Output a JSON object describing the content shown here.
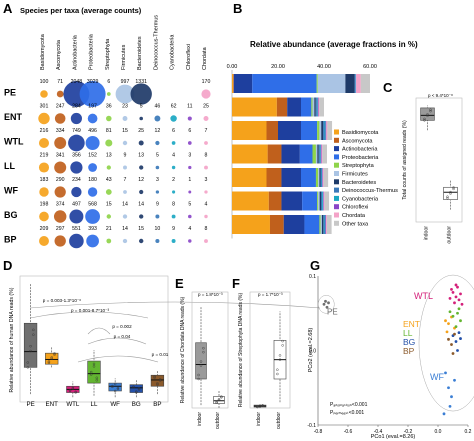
{
  "colors": {
    "Basidiomycota": "#f5a21b",
    "Ascomycota": "#c0601c",
    "Actinobacteria": "#1e3f9e",
    "Proteobacteria": "#2f6ee8",
    "Streptophyta": "#8fd44a",
    "Firmicutes": "#aac4e4",
    "Bacteroidetes": "#1e3a68",
    "Deinococcus-Thermus": "#3a78b8",
    "Cyanobacteria": "#1aa7c2",
    "Chloroflexi": "#8a46c8",
    "Chordata": "#f4a3c8",
    "Other taxa": "#c8c8c8",
    "PE": "#6f6f6f",
    "ENT": "#f5a21b",
    "WTL": "#d4207a",
    "LL": "#63b531",
    "WF": "#3a7ed4",
    "BG": "#2450a8",
    "BP": "#8b5a2b"
  },
  "chart_data": [
    {
      "panel": "A",
      "type": "heatmap",
      "title": "Species per taxa (average counts)",
      "categories": [
        "Basidiomycota",
        "Ascomycota",
        "Actinobacteria",
        "Proteobacteria",
        "Streptophyta",
        "Firmicutes",
        "Bacteroidetes",
        "Deinococcus-Thermus",
        "Cyanobacteria",
        "Chloroflexi",
        "Chordata"
      ],
      "rows": [
        "PE",
        "ENT",
        "WTL",
        "LL",
        "WF",
        "BG",
        "BP"
      ],
      "values": [
        [
          "100",
          "71",
          "2048",
          "3029",
          "6",
          "997",
          "1331",
          "",
          "",
          "",
          "170"
        ],
        [
          "301",
          "247",
          "284",
          "197",
          "36",
          "23",
          "5",
          "46",
          "62",
          "11",
          "25"
        ],
        [
          "216",
          "334",
          "749",
          "496",
          "81",
          "15",
          "25",
          "12",
          "6",
          "6",
          "7"
        ],
        [
          "219",
          "341",
          "356",
          "152",
          "13",
          "9",
          "13",
          "5",
          "4",
          "3",
          "8"
        ],
        [
          "183",
          "290",
          "234",
          "180",
          "43",
          "7",
          "12",
          "3",
          "2",
          "1",
          "3"
        ],
        [
          "198",
          "374",
          "497",
          "568",
          "15",
          "14",
          "14",
          "9",
          "8",
          "5",
          "4"
        ],
        [
          "209",
          "297",
          "551",
          "393",
          "21",
          "14",
          "15",
          "10",
          "9",
          "4",
          "8"
        ]
      ]
    },
    {
      "panel": "B",
      "type": "bar",
      "title": "Relative abundance (average fractions in %)",
      "xlim": [
        0,
        60
      ],
      "ticks": [
        "0.00",
        "20.00",
        "40.00",
        "60.00"
      ],
      "categories": [
        "PE",
        "ENT",
        "WTL",
        "LL",
        "WF",
        "BG",
        "BP"
      ],
      "series": [
        {
          "name": "Basidiomycota",
          "values": [
            0.5,
            19.5,
            15.0,
            15.5,
            15.0,
            16.0,
            16.5
          ]
        },
        {
          "name": "Ascomycota",
          "values": [
            0.3,
            4.5,
            5.0,
            6.0,
            6.5,
            5.5,
            6.0
          ]
        },
        {
          "name": "Actinobacteria",
          "values": [
            8.0,
            6.0,
            10.0,
            8.0,
            8.5,
            9.0,
            9.0
          ]
        },
        {
          "name": "Proteobacteria",
          "values": [
            28.0,
            4.5,
            7.0,
            5.5,
            6.5,
            6.5,
            6.5
          ]
        },
        {
          "name": "Streptophyta",
          "values": [
            0.5,
            0.5,
            1.0,
            1.5,
            1.0,
            0.5,
            0.5
          ]
        },
        {
          "name": "Firmicutes",
          "values": [
            12.0,
            0.8,
            0.8,
            0.6,
            0.5,
            0.6,
            0.6
          ]
        },
        {
          "name": "Bacteroidetes",
          "values": [
            4.0,
            0.6,
            0.8,
            0.6,
            0.5,
            0.6,
            0.6
          ]
        },
        {
          "name": "Deinococcus-Thermus",
          "values": [
            0.2,
            0.5,
            0.6,
            0.5,
            0.4,
            0.5,
            0.5
          ]
        },
        {
          "name": "Cyanobacteria",
          "values": [
            0.3,
            0.4,
            0.5,
            0.4,
            0.3,
            0.4,
            0.4
          ]
        },
        {
          "name": "Chloroflexi",
          "values": [
            0.2,
            0.3,
            0.3,
            0.3,
            0.3,
            0.3,
            0.3
          ]
        },
        {
          "name": "Chordata",
          "values": [
            2.0,
            0.4,
            0.5,
            0.4,
            0.3,
            0.3,
            0.4
          ]
        },
        {
          "name": "Other taxa",
          "values": [
            4.0,
            2.0,
            2.0,
            2.0,
            2.0,
            2.0,
            2.0
          ]
        }
      ]
    },
    {
      "panel": "C",
      "type": "box",
      "ylabel": "Total counts of assigned reads (%)",
      "annotation": "p < 9.4*10⁻⁸",
      "categories": [
        "indoor",
        "outdoor"
      ],
      "boxes": [
        {
          "name": "indoor",
          "min": 57,
          "q1": 61,
          "median": 63,
          "q3": 66,
          "max": 67
        },
        {
          "name": "outdoor",
          "min": 25,
          "q1": 29,
          "median": 32,
          "q3": 34,
          "max": 37
        }
      ]
    },
    {
      "panel": "D",
      "type": "box",
      "ylabel": "Relative abundance of human DNA reads (%)",
      "categories": [
        "PE",
        "ENT",
        "WTL",
        "LL",
        "WF",
        "BG",
        "BP"
      ],
      "annotations": [
        "p = 0.003-1.3*10⁻⁶",
        "p = 0.001-8.7*10⁻³",
        "p = 0.002",
        "p = 0.04",
        "p = 0.01"
      ],
      "boxes": [
        {
          "name": "PE",
          "min": 0.5,
          "q1": 2.2,
          "median": 3.2,
          "q3": 5.0,
          "max": 7.5
        },
        {
          "name": "ENT",
          "min": 2.2,
          "q1": 2.4,
          "median": 2.7,
          "q3": 3.1,
          "max": 3.5
        },
        {
          "name": "WTL",
          "min": 0.3,
          "q1": 0.6,
          "median": 0.8,
          "q3": 1.0,
          "max": 1.3
        },
        {
          "name": "LL",
          "min": 0.4,
          "q1": 1.2,
          "median": 1.8,
          "q3": 2.6,
          "max": 3.3
        },
        {
          "name": "WF",
          "min": 0.3,
          "q1": 0.7,
          "median": 1.0,
          "q3": 1.2,
          "max": 1.5
        },
        {
          "name": "BG",
          "min": 0.3,
          "q1": 0.6,
          "median": 0.9,
          "q3": 1.1,
          "max": 1.4
        },
        {
          "name": "BP",
          "min": 0.5,
          "q1": 1.0,
          "median": 1.4,
          "q3": 1.7,
          "max": 2.0
        }
      ]
    },
    {
      "panel": "E",
      "type": "box",
      "ylabel": "Relative abundance of Chordata DNA reads (%)",
      "annotation": "p = 1.8*10⁻³",
      "categories": [
        "indoor",
        "outdoor"
      ],
      "boxes": [
        {
          "name": "indoor",
          "min": 0.2,
          "q1": 2.0,
          "median": 3.0,
          "q3": 4.5,
          "max": 7.0
        },
        {
          "name": "outdoor",
          "min": 0.0,
          "q1": 0.3,
          "median": 0.5,
          "q3": 0.8,
          "max": 1.2
        }
      ]
    },
    {
      "panel": "F",
      "type": "box",
      "ylabel": "Relative abundance of Streptophyta DNA reads (%)",
      "annotation": "p = 1.7*10⁻³",
      "categories": [
        "indoor",
        "outdoor"
      ],
      "boxes": [
        {
          "name": "indoor",
          "min": 0.0,
          "q1": 0.05,
          "median": 0.1,
          "q3": 0.15,
          "max": 0.2
        },
        {
          "name": "outdoor",
          "min": 0.3,
          "q1": 1.5,
          "median": 2.5,
          "q3": 3.5,
          "max": 5.0
        }
      ]
    },
    {
      "panel": "G",
      "type": "scatter",
      "xlabel": "PCo1 (eval.=8.26)",
      "ylabel": "PCo2 (eval.=2.68)",
      "xlim": [
        -0.8,
        0.2
      ],
      "ylim": [
        -0.1,
        0.1
      ],
      "xticks": [
        "-0.8",
        "-0.6",
        "-0.4",
        "-0.2",
        "0.0",
        "0.2"
      ],
      "yticks": [
        "-0.1",
        "0.0",
        "0.1"
      ],
      "annotations": [
        "Pₐₙₒₚₗₐₛₜᵢₒₙ<0.001",
        "Pₚₑᵣₘₑₐₛₜ<0.001"
      ],
      "legend": [
        "ENT",
        "LL",
        "BG",
        "BP"
      ],
      "labels": [
        "PE",
        "WTL",
        "WF"
      ],
      "series": [
        {
          "name": "PE",
          "points": [
            [
              -0.76,
              0.062
            ],
            [
              -0.74,
              0.058
            ],
            [
              -0.73,
              0.064
            ],
            [
              -0.75,
              0.066
            ]
          ]
        },
        {
          "name": "WTL",
          "points": [
            [
              0.08,
              0.07
            ],
            [
              0.1,
              0.078
            ],
            [
              0.12,
              0.072
            ],
            [
              0.13,
              0.085
            ],
            [
              0.11,
              0.064
            ],
            [
              0.15,
              0.076
            ],
            [
              0.09,
              0.082
            ],
            [
              0.14,
              0.068
            ],
            [
              0.12,
              0.088
            ],
            [
              0.16,
              0.062
            ]
          ]
        },
        {
          "name": "ENT",
          "points": [
            [
              0.05,
              0.04
            ],
            [
              0.07,
              0.036
            ],
            [
              0.09,
              0.045
            ],
            [
              0.11,
              0.03
            ],
            [
              0.06,
              0.025
            ]
          ]
        },
        {
          "name": "LL",
          "points": [
            [
              0.08,
              0.052
            ],
            [
              0.1,
              0.046
            ],
            [
              0.13,
              0.05
            ],
            [
              0.15,
              0.04
            ],
            [
              0.12,
              0.032
            ],
            [
              0.14,
              0.056
            ]
          ]
        },
        {
          "name": "BG",
          "points": [
            [
              0.1,
              0.02
            ],
            [
              0.12,
              0.012
            ],
            [
              0.14,
              0.024
            ],
            [
              0.13,
              0.0
            ],
            [
              0.15,
              0.016
            ]
          ]
        },
        {
          "name": "BP",
          "points": [
            [
              0.07,
              0.015
            ],
            [
              0.09,
              0.008
            ],
            [
              0.11,
              0.022
            ],
            [
              0.1,
              -0.004
            ]
          ]
        },
        {
          "name": "WF",
          "points": [
            [
              0.05,
              -0.03
            ],
            [
              0.07,
              -0.05
            ],
            [
              0.09,
              -0.062
            ],
            [
              0.11,
              -0.04
            ],
            [
              0.08,
              -0.075
            ],
            [
              0.04,
              -0.085
            ]
          ]
        }
      ]
    }
  ]
}
